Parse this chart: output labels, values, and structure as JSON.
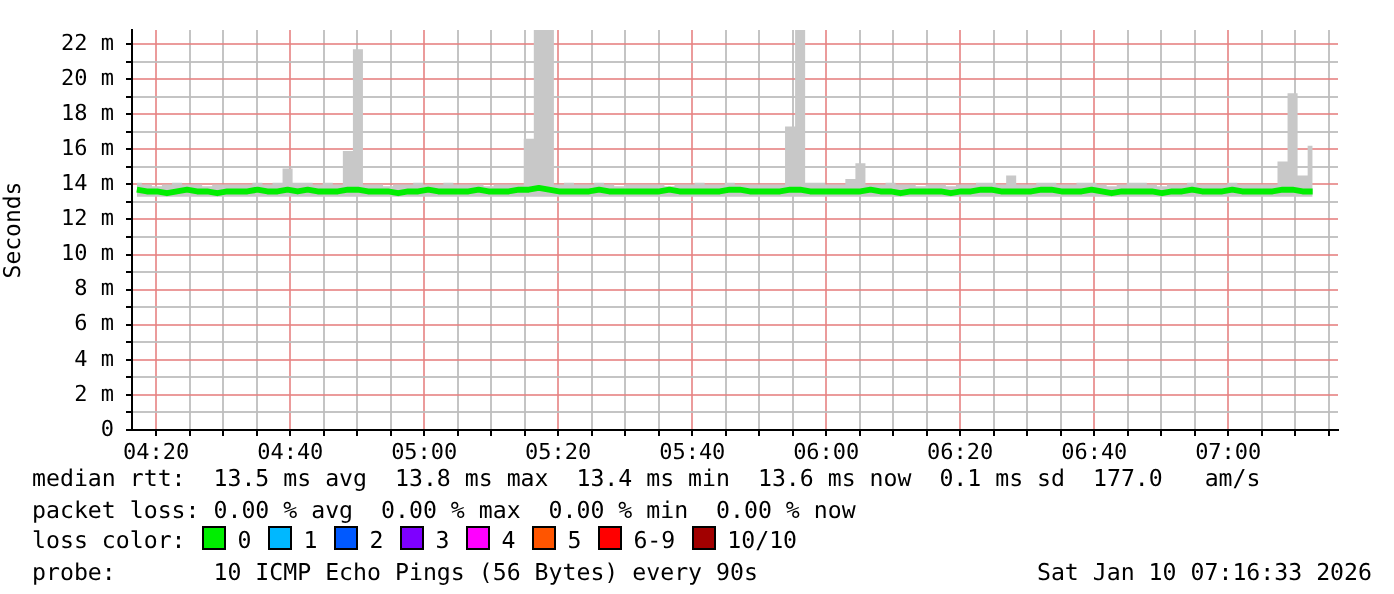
{
  "chart_data": {
    "type": "line",
    "ylabel": "Seconds",
    "xlim": [
      4.273,
      7.273
    ],
    "ylim": [
      0,
      22.8
    ],
    "xticks": [
      {
        "value": 4.3333,
        "label": "04:20"
      },
      {
        "value": 4.4167,
        "label": null
      },
      {
        "value": 4.5,
        "label": null
      },
      {
        "value": 4.5833,
        "label": null
      },
      {
        "value": 4.6667,
        "label": "04:40"
      },
      {
        "value": 4.75,
        "label": null
      },
      {
        "value": 4.8333,
        "label": null
      },
      {
        "value": 4.9167,
        "label": null
      },
      {
        "value": 5,
        "label": "05:00"
      },
      {
        "value": 5.0833,
        "label": null
      },
      {
        "value": 5.1667,
        "label": null
      },
      {
        "value": 5.25,
        "label": null
      },
      {
        "value": 5.3333,
        "label": "05:20"
      },
      {
        "value": 5.4167,
        "label": null
      },
      {
        "value": 5.5,
        "label": null
      },
      {
        "value": 5.5833,
        "label": null
      },
      {
        "value": 5.6667,
        "label": "05:40"
      },
      {
        "value": 5.75,
        "label": null
      },
      {
        "value": 5.8333,
        "label": null
      },
      {
        "value": 5.9167,
        "label": null
      },
      {
        "value": 6,
        "label": "06:00"
      },
      {
        "value": 6.0833,
        "label": null
      },
      {
        "value": 6.1667,
        "label": null
      },
      {
        "value": 6.25,
        "label": null
      },
      {
        "value": 6.3333,
        "label": "06:20"
      },
      {
        "value": 6.4167,
        "label": null
      },
      {
        "value": 6.5,
        "label": null
      },
      {
        "value": 6.5833,
        "label": null
      },
      {
        "value": 6.6667,
        "label": "06:40"
      },
      {
        "value": 6.75,
        "label": null
      },
      {
        "value": 6.8333,
        "label": null
      },
      {
        "value": 6.9167,
        "label": null
      },
      {
        "value": 7,
        "label": "07:00"
      },
      {
        "value": 7.0833,
        "label": null
      },
      {
        "value": 7.1667,
        "label": null
      },
      {
        "value": 7.25,
        "label": null
      }
    ],
    "yticks": [
      0,
      {
        "value": 1,
        "label": null
      },
      {
        "value": 2,
        "label": "2 m"
      },
      {
        "value": 3,
        "label": null
      },
      {
        "value": 4,
        "label": "4 m"
      },
      {
        "value": 5,
        "label": null
      },
      {
        "value": 6,
        "label": "6 m"
      },
      {
        "value": 7,
        "label": null
      },
      {
        "value": 8,
        "label": "8 m"
      },
      {
        "value": 9,
        "label": null
      },
      {
        "value": 10,
        "label": "10 m"
      },
      {
        "value": 11,
        "label": null
      },
      {
        "value": 12,
        "label": "12 m"
      },
      {
        "value": 13,
        "label": null
      },
      {
        "value": 14,
        "label": "14 m"
      },
      {
        "value": 15,
        "label": null
      },
      {
        "value": 16,
        "label": "16 m"
      },
      {
        "value": 17,
        "label": null
      },
      {
        "value": 18,
        "label": "18 m"
      },
      {
        "value": 19,
        "label": null
      },
      {
        "value": 20,
        "label": "20 m"
      },
      {
        "value": 21,
        "label": null
      },
      {
        "value": 22,
        "label": "22 m"
      }
    ],
    "grid": true,
    "legend": "bottom",
    "legend_title": "loss color:",
    "x": [
      4.285,
      4.31,
      4.335,
      4.36,
      4.385,
      4.41,
      4.435,
      4.46,
      4.485,
      4.51,
      4.535,
      4.56,
      4.585,
      4.61,
      4.635,
      4.66,
      4.685,
      4.71,
      4.735,
      4.76,
      4.785,
      4.81,
      4.835,
      4.86,
      4.885,
      4.91,
      4.935,
      4.96,
      4.985,
      5.01,
      5.035,
      5.06,
      5.085,
      5.11,
      5.135,
      5.16,
      5.185,
      5.21,
      5.235,
      5.26,
      5.285,
      5.31,
      5.335,
      5.36,
      5.385,
      5.41,
      5.435,
      5.46,
      5.485,
      5.51,
      5.535,
      5.56,
      5.585,
      5.61,
      5.635,
      5.66,
      5.685,
      5.71,
      5.735,
      5.76,
      5.785,
      5.81,
      5.835,
      5.86,
      5.885,
      5.91,
      5.935,
      5.96,
      5.985,
      6.01,
      6.035,
      6.06,
      6.085,
      6.11,
      6.135,
      6.16,
      6.185,
      6.21,
      6.235,
      6.26,
      6.285,
      6.31,
      6.335,
      6.36,
      6.385,
      6.41,
      6.435,
      6.46,
      6.485,
      6.51,
      6.535,
      6.56,
      6.585,
      6.61,
      6.635,
      6.66,
      6.685,
      6.71,
      6.735,
      6.76,
      6.785,
      6.81,
      6.835,
      6.86,
      6.885,
      6.91,
      6.935,
      6.96,
      6.985,
      7.01,
      7.035,
      7.06,
      7.085,
      7.11,
      7.135,
      7.16,
      7.185,
      7.21
    ],
    "series": [
      {
        "type": "line",
        "name": "0",
        "color": "#00ee00",
        "values": [
          13.7,
          13.6,
          13.6,
          13.5,
          13.6,
          13.7,
          13.6,
          13.6,
          13.5,
          13.6,
          13.6,
          13.6,
          13.7,
          13.6,
          13.6,
          13.7,
          13.6,
          13.7,
          13.6,
          13.6,
          13.6,
          13.7,
          13.7,
          13.6,
          13.6,
          13.6,
          13.5,
          13.6,
          13.6,
          13.7,
          13.6,
          13.6,
          13.6,
          13.6,
          13.7,
          13.6,
          13.6,
          13.6,
          13.7,
          13.7,
          13.8,
          13.7,
          13.6,
          13.6,
          13.6,
          13.6,
          13.7,
          13.6,
          13.6,
          13.6,
          13.6,
          13.6,
          13.6,
          13.7,
          13.6,
          13.6,
          13.6,
          13.6,
          13.6,
          13.7,
          13.7,
          13.6,
          13.6,
          13.6,
          13.6,
          13.7,
          13.7,
          13.6,
          13.6,
          13.6,
          13.6,
          13.6,
          13.6,
          13.7,
          13.6,
          13.6,
          13.5,
          13.6,
          13.6,
          13.6,
          13.6,
          13.5,
          13.6,
          13.6,
          13.7,
          13.7,
          13.6,
          13.6,
          13.6,
          13.6,
          13.7,
          13.7,
          13.6,
          13.6,
          13.6,
          13.7,
          13.6,
          13.5,
          13.6,
          13.6,
          13.6,
          13.6,
          13.5,
          13.6,
          13.6,
          13.7,
          13.6,
          13.6,
          13.6,
          13.7,
          13.6,
          13.6,
          13.6,
          13.6,
          13.7,
          13.7,
          13.6,
          13.6
        ],
        "lower": [
          13.3,
          13.3,
          13.3,
          13.3,
          13.3,
          13.3,
          13.3,
          13.3,
          13.3,
          13.3,
          13.3,
          13.3,
          13.3,
          13.3,
          13.3,
          13.3,
          13.3,
          13.3,
          13.3,
          13.3,
          13.3,
          13.3,
          13.3,
          13.3,
          13.3,
          13.3,
          13.3,
          13.3,
          13.3,
          13.3,
          13.3,
          13.3,
          13.3,
          13.3,
          13.3,
          13.3,
          13.3,
          13.3,
          13.3,
          13.3,
          13.3,
          13.3,
          13.3,
          13.3,
          13.3,
          13.3,
          13.3,
          13.3,
          13.3,
          13.3,
          13.3,
          13.3,
          13.3,
          13.3,
          13.3,
          13.3,
          13.3,
          13.3,
          13.3,
          13.3,
          13.3,
          13.3,
          13.3,
          13.3,
          13.3,
          13.3,
          13.3,
          13.3,
          13.3,
          13.3,
          13.3,
          13.3,
          13.3,
          13.3,
          13.3,
          13.3,
          13.3,
          13.3,
          13.3,
          13.3,
          13.3,
          13.3,
          13.3,
          13.3,
          13.3,
          13.3,
          13.3,
          13.3,
          13.3,
          13.3,
          13.3,
          13.3,
          13.3,
          13.3,
          13.3,
          13.3,
          13.3,
          13.3,
          13.3,
          13.3,
          13.3,
          13.3,
          13.3,
          13.3,
          13.3,
          13.3,
          13.3,
          13.3,
          13.3,
          13.3,
          13.3,
          13.3,
          13.3,
          13.3,
          13.3,
          13.3,
          13.3,
          13.3
        ],
        "upper": [
          14.1,
          14,
          13.9,
          14,
          14.1,
          14,
          14,
          13.9,
          14,
          14,
          14,
          14,
          14.1,
          14,
          14.1,
          14.9,
          14.1,
          14.1,
          14,
          14.1,
          14,
          15.9,
          21.7,
          14,
          14,
          13.9,
          14,
          14,
          14.1,
          14,
          14,
          14.1,
          14,
          14,
          14,
          13.9,
          14,
          14,
          14,
          16.6,
          22.8,
          22.8,
          14,
          14.1,
          14,
          14,
          14.1,
          14,
          13.9,
          14,
          14,
          14,
          14,
          13.9,
          14,
          14,
          14.1,
          14,
          14,
          14.1,
          14,
          14,
          14,
          14,
          14,
          17.3,
          22.8,
          14.1,
          14.1,
          14,
          14,
          14.3,
          15.2,
          14,
          14,
          14.1,
          14,
          14,
          13.9,
          14,
          14,
          13.9,
          14,
          14,
          14.1,
          14.1,
          14,
          14.5,
          14,
          14,
          14.1,
          14.1,
          14,
          14,
          14.1,
          14.1,
          14,
          13.9,
          14,
          14.1,
          14.1,
          14,
          13.9,
          14,
          14,
          14.1,
          14,
          14,
          14,
          14.1,
          14,
          14,
          14,
          14,
          15.3,
          19.2,
          14.5,
          16.2
        ]
      },
      {
        "type": "line",
        "name": "1",
        "color": "#00b8ff",
        "values": [
          null,
          null,
          null,
          null,
          null,
          null,
          null,
          null,
          null,
          null,
          null,
          null,
          null,
          null,
          null,
          null,
          null,
          null,
          null,
          null,
          null,
          null,
          null,
          null,
          null,
          null,
          null,
          null,
          null,
          null,
          null,
          null,
          null,
          null,
          null,
          null,
          null,
          null,
          null,
          null,
          null,
          null,
          null,
          null,
          null,
          null,
          null,
          null,
          null,
          null,
          null,
          null,
          null,
          null,
          null,
          null,
          null,
          null,
          null,
          null,
          null,
          null,
          null,
          null,
          null,
          null,
          null,
          null,
          null,
          null,
          null,
          null,
          null,
          null,
          null,
          null,
          null,
          null,
          null,
          null,
          null,
          null,
          null,
          null,
          null,
          null,
          null,
          null,
          null,
          null,
          null,
          null,
          null,
          null,
          null,
          null,
          null,
          null,
          null,
          null,
          null,
          null,
          null,
          null,
          null,
          null,
          null,
          null,
          null,
          null,
          null,
          null,
          null,
          null,
          null,
          null,
          null,
          null
        ]
      },
      {
        "type": "line",
        "name": "2",
        "color": "#0059ff",
        "values": [
          null,
          null,
          null,
          null,
          null,
          null,
          null,
          null,
          null,
          null,
          null,
          null,
          null,
          null,
          null,
          null,
          null,
          null,
          null,
          null,
          null,
          null,
          null,
          null,
          null,
          null,
          null,
          null,
          null,
          null,
          null,
          null,
          null,
          null,
          null,
          null,
          null,
          null,
          null,
          null,
          null,
          null,
          null,
          null,
          null,
          null,
          null,
          null,
          null,
          null,
          null,
          null,
          null,
          null,
          null,
          null,
          null,
          null,
          null,
          null,
          null,
          null,
          null,
          null,
          null,
          null,
          null,
          null,
          null,
          null,
          null,
          null,
          null,
          null,
          null,
          null,
          null,
          null,
          null,
          null,
          null,
          null,
          null,
          null,
          null,
          null,
          null,
          null,
          null,
          null,
          null,
          null,
          null,
          null,
          null,
          null,
          null,
          null,
          null,
          null,
          null,
          null,
          null,
          null,
          null,
          null,
          null,
          null,
          null,
          null,
          null,
          null,
          null,
          null,
          null,
          null,
          null,
          null
        ]
      },
      {
        "type": "line",
        "name": "3",
        "color": "#7e00ff",
        "values": [
          null,
          null,
          null,
          null,
          null,
          null,
          null,
          null,
          null,
          null,
          null,
          null,
          null,
          null,
          null,
          null,
          null,
          null,
          null,
          null,
          null,
          null,
          null,
          null,
          null,
          null,
          null,
          null,
          null,
          null,
          null,
          null,
          null,
          null,
          null,
          null,
          null,
          null,
          null,
          null,
          null,
          null,
          null,
          null,
          null,
          null,
          null,
          null,
          null,
          null,
          null,
          null,
          null,
          null,
          null,
          null,
          null,
          null,
          null,
          null,
          null,
          null,
          null,
          null,
          null,
          null,
          null,
          null,
          null,
          null,
          null,
          null,
          null,
          null,
          null,
          null,
          null,
          null,
          null,
          null,
          null,
          null,
          null,
          null,
          null,
          null,
          null,
          null,
          null,
          null,
          null,
          null,
          null,
          null,
          null,
          null,
          null,
          null,
          null,
          null,
          null,
          null,
          null,
          null,
          null,
          null,
          null,
          null,
          null,
          null,
          null,
          null,
          null,
          null,
          null,
          null,
          null,
          null
        ]
      },
      {
        "type": "line",
        "name": "4",
        "color": "#ff00ff",
        "values": [
          null,
          null,
          null,
          null,
          null,
          null,
          null,
          null,
          null,
          null,
          null,
          null,
          null,
          null,
          null,
          null,
          null,
          null,
          null,
          null,
          null,
          null,
          null,
          null,
          null,
          null,
          null,
          null,
          null,
          null,
          null,
          null,
          null,
          null,
          null,
          null,
          null,
          null,
          null,
          null,
          null,
          null,
          null,
          null,
          null,
          null,
          null,
          null,
          null,
          null,
          null,
          null,
          null,
          null,
          null,
          null,
          null,
          null,
          null,
          null,
          null,
          null,
          null,
          null,
          null,
          null,
          null,
          null,
          null,
          null,
          null,
          null,
          null,
          null,
          null,
          null,
          null,
          null,
          null,
          null,
          null,
          null,
          null,
          null,
          null,
          null,
          null,
          null,
          null,
          null,
          null,
          null,
          null,
          null,
          null,
          null,
          null,
          null,
          null,
          null,
          null,
          null,
          null,
          null,
          null,
          null,
          null,
          null,
          null,
          null,
          null,
          null,
          null,
          null,
          null,
          null,
          null,
          null
        ]
      },
      {
        "type": "line",
        "name": "5",
        "color": "#ff5500",
        "values": [
          null,
          null,
          null,
          null,
          null,
          null,
          null,
          null,
          null,
          null,
          null,
          null,
          null,
          null,
          null,
          null,
          null,
          null,
          null,
          null,
          null,
          null,
          null,
          null,
          null,
          null,
          null,
          null,
          null,
          null,
          null,
          null,
          null,
          null,
          null,
          null,
          null,
          null,
          null,
          null,
          null,
          null,
          null,
          null,
          null,
          null,
          null,
          null,
          null,
          null,
          null,
          null,
          null,
          null,
          null,
          null,
          null,
          null,
          null,
          null,
          null,
          null,
          null,
          null,
          null,
          null,
          null,
          null,
          null,
          null,
          null,
          null,
          null,
          null,
          null,
          null,
          null,
          null,
          null,
          null,
          null,
          null,
          null,
          null,
          null,
          null,
          null,
          null,
          null,
          null,
          null,
          null,
          null,
          null,
          null,
          null,
          null,
          null,
          null,
          null,
          null,
          null,
          null,
          null,
          null,
          null,
          null,
          null,
          null,
          null,
          null,
          null,
          null,
          null,
          null,
          null,
          null,
          null
        ]
      },
      {
        "type": "line",
        "name": "6-9",
        "color": "#ff0000",
        "values": [
          null,
          null,
          null,
          null,
          null,
          null,
          null,
          null,
          null,
          null,
          null,
          null,
          null,
          null,
          null,
          null,
          null,
          null,
          null,
          null,
          null,
          null,
          null,
          null,
          null,
          null,
          null,
          null,
          null,
          null,
          null,
          null,
          null,
          null,
          null,
          null,
          null,
          null,
          null,
          null,
          null,
          null,
          null,
          null,
          null,
          null,
          null,
          null,
          null,
          null,
          null,
          null,
          null,
          null,
          null,
          null,
          null,
          null,
          null,
          null,
          null,
          null,
          null,
          null,
          null,
          null,
          null,
          null,
          null,
          null,
          null,
          null,
          null,
          null,
          null,
          null,
          null,
          null,
          null,
          null,
          null,
          null,
          null,
          null,
          null,
          null,
          null,
          null,
          null,
          null,
          null,
          null,
          null,
          null,
          null,
          null,
          null,
          null,
          null,
          null,
          null,
          null,
          null,
          null,
          null,
          null,
          null,
          null,
          null,
          null,
          null,
          null,
          null,
          null,
          null,
          null,
          null,
          null
        ]
      },
      {
        "type": "line",
        "name": "10/10",
        "color": "#a10000",
        "values": [
          null,
          null,
          null,
          null,
          null,
          null,
          null,
          null,
          null,
          null,
          null,
          null,
          null,
          null,
          null,
          null,
          null,
          null,
          null,
          null,
          null,
          null,
          null,
          null,
          null,
          null,
          null,
          null,
          null,
          null,
          null,
          null,
          null,
          null,
          null,
          null,
          null,
          null,
          null,
          null,
          null,
          null,
          null,
          null,
          null,
          null,
          null,
          null,
          null,
          null,
          null,
          null,
          null,
          null,
          null,
          null,
          null,
          null,
          null,
          null,
          null,
          null,
          null,
          null,
          null,
          null,
          null,
          null,
          null,
          null,
          null,
          null,
          null,
          null,
          null,
          null,
          null,
          null,
          null,
          null,
          null,
          null,
          null,
          null,
          null,
          null,
          null,
          null,
          null,
          null,
          null,
          null,
          null,
          null,
          null,
          null,
          null,
          null,
          null,
          null,
          null,
          null,
          null,
          null,
          null,
          null,
          null,
          null,
          null,
          null,
          null,
          null,
          null,
          null,
          null,
          null,
          null,
          null
        ]
      }
    ],
    "annotations": [
      "median rtt:  13.5 ms avg  13.8 ms max  13.4 ms min  13.6 ms now  0.1 ms sd  177.0   am/s",
      "packet loss: 0.00 % avg  0.00 % max  0.00 % min  0.00 % now",
      "probe:       10 ICMP Echo Pings (56 Bytes) every 90s",
      "Sat Jan 10 07:16:33 2026"
    ]
  }
}
